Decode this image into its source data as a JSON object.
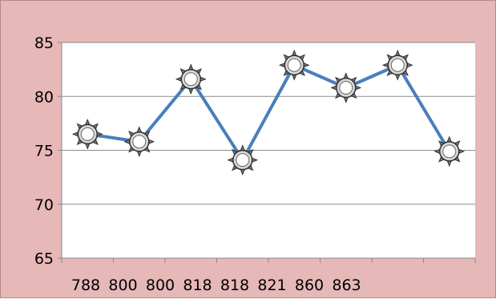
{
  "chart_data": {
    "type": "line",
    "x_tick_labels": [
      "788",
      "800",
      "800",
      "818",
      "818",
      "821",
      "860",
      "863"
    ],
    "y_ticks": [
      65,
      70,
      75,
      80,
      85
    ],
    "ylim": [
      65,
      85
    ],
    "grid": true,
    "title": "",
    "xlabel": "",
    "ylabel": "",
    "series": [
      {
        "color": "#4a7ebb",
        "marker": "sun",
        "values": [
          76.5,
          75.8,
          81.6,
          74.1,
          82.9,
          80.8,
          82.9,
          74.9
        ]
      }
    ]
  }
}
